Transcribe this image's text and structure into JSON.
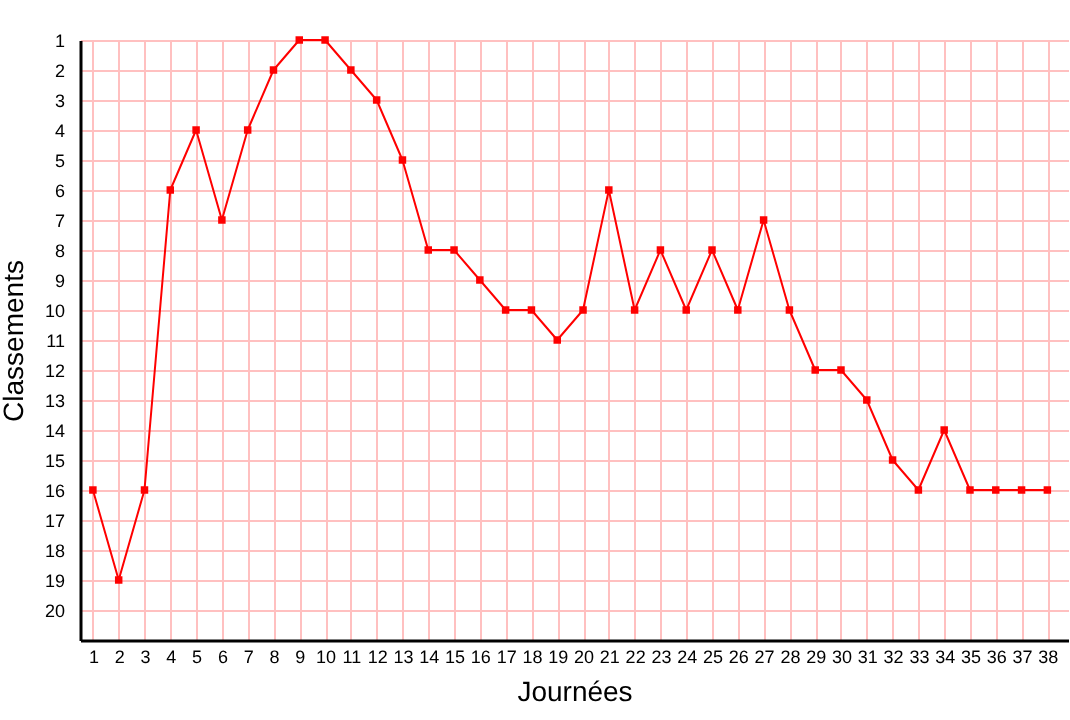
{
  "chart_data": {
    "type": "line",
    "xlabel": "Journées",
    "ylabel": "Classements",
    "x": [
      1,
      2,
      3,
      4,
      5,
      6,
      7,
      8,
      9,
      10,
      11,
      12,
      13,
      14,
      15,
      16,
      17,
      18,
      19,
      20,
      21,
      22,
      23,
      24,
      25,
      26,
      27,
      28,
      29,
      30,
      31,
      32,
      33,
      34,
      35,
      36,
      37,
      38
    ],
    "series": [
      {
        "color": "#ff0000",
        "values": [
          16,
          19,
          16,
          6,
          4,
          7,
          4,
          2,
          1,
          1,
          2,
          3,
          5,
          8,
          8,
          9,
          10,
          10,
          11,
          10,
          6,
          10,
          8,
          10,
          8,
          10,
          7,
          10,
          12,
          12,
          13,
          15,
          16,
          14,
          16,
          16,
          16,
          16
        ]
      }
    ],
    "xlim": [
      0.5,
      38.8
    ],
    "xticks": [
      1,
      2,
      3,
      4,
      5,
      6,
      7,
      8,
      9,
      10,
      11,
      12,
      13,
      14,
      15,
      16,
      17,
      18,
      19,
      20,
      21,
      22,
      23,
      24,
      25,
      26,
      27,
      28,
      29,
      30,
      31,
      32,
      33,
      34,
      35,
      36,
      37,
      38
    ],
    "ylim": [
      21,
      1
    ],
    "yticks": [
      1,
      2,
      3,
      4,
      5,
      6,
      7,
      8,
      9,
      10,
      11,
      12,
      13,
      14,
      15,
      16,
      17,
      18,
      19,
      20
    ],
    "grid": true,
    "marker": "square",
    "line_style": "solid"
  }
}
